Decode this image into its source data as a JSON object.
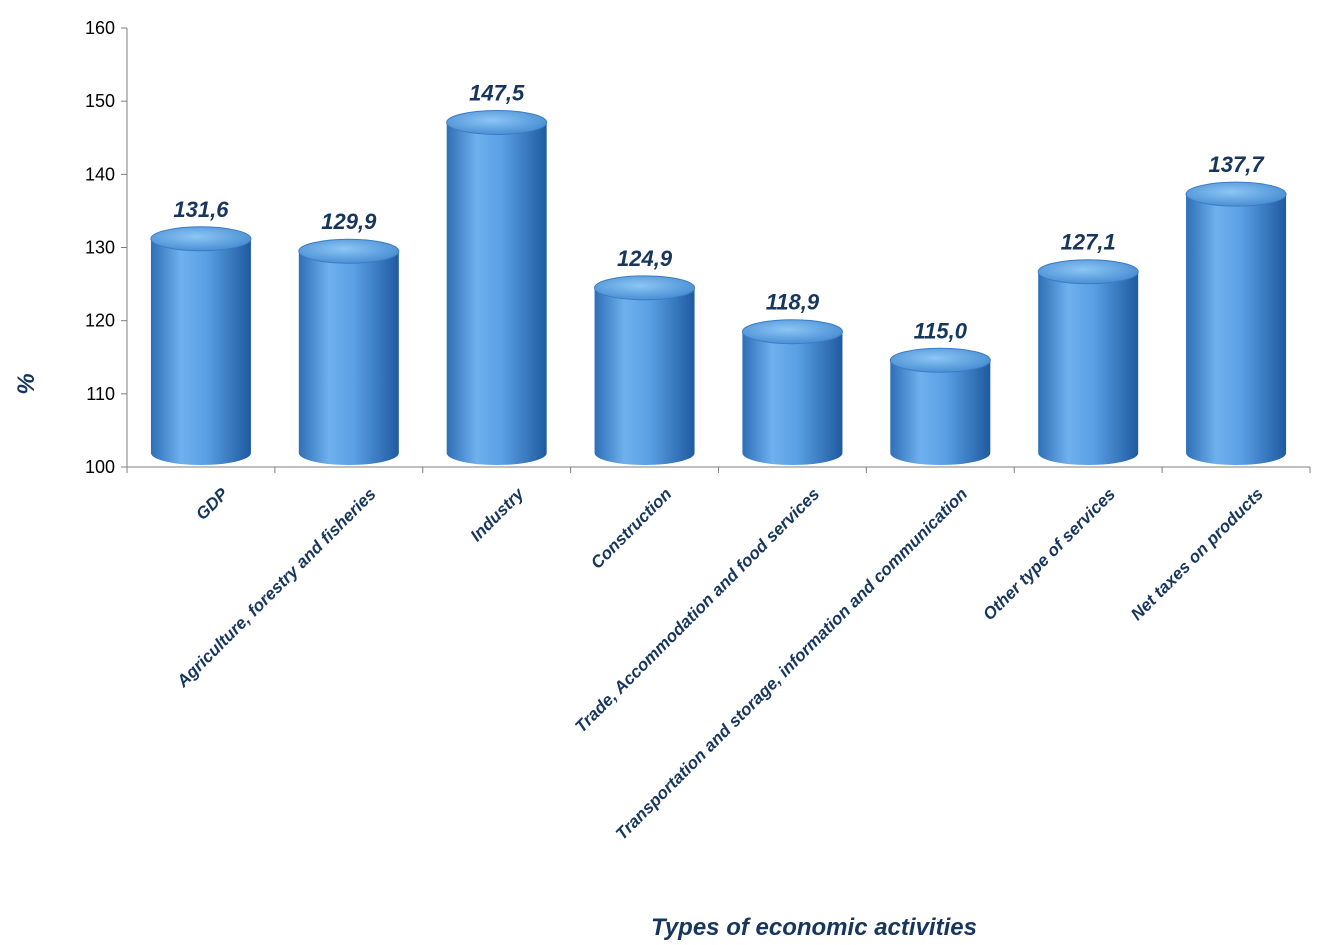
{
  "chart_data": {
    "type": "bar",
    "title": "",
    "xlabel": "Types of economic activities",
    "ylabel": "%",
    "ylim": [
      100,
      160
    ],
    "yticks": [
      100,
      110,
      120,
      130,
      140,
      150,
      160
    ],
    "categories": [
      "GDP",
      "Agriculture, forestry and fisheries",
      "Industry",
      "Construction",
      "Trade, Accommodation and food services",
      "Transportation and storage, information and communication",
      "Other type of services",
      "Net taxes on products"
    ],
    "values": [
      131.6,
      129.9,
      147.5,
      124.9,
      118.9,
      115.0,
      127.1,
      137.7
    ],
    "value_labels": [
      "131,6",
      "129,9",
      "147,5",
      "124,9",
      "118,9",
      "115,0",
      "127,1",
      "137,7"
    ],
    "bar_color": "#4f95d8",
    "grid": false,
    "legend": "none"
  }
}
